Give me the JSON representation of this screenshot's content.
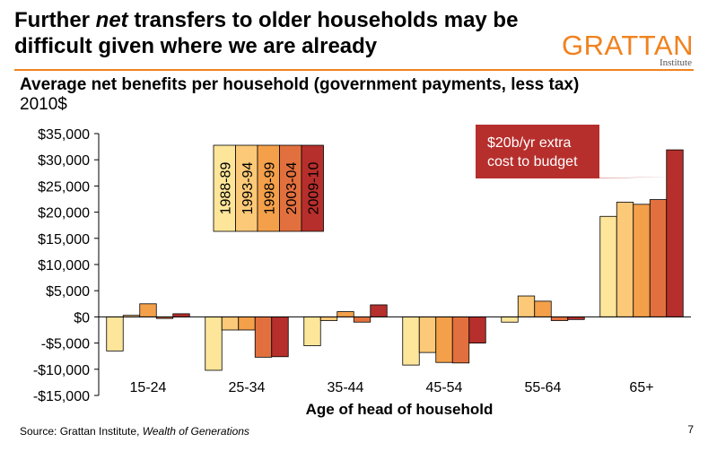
{
  "slide": {
    "title": "Further net transfers to older households may be difficult given where we are already",
    "title_parts": {
      "before": "Further ",
      "emphasis": "net",
      "after": " transfers to older households may be difficult given where we are already"
    },
    "logo": {
      "main": "GRATTAN",
      "sub": "Institute"
    },
    "source_prefix": "Source: Grattan Institute, ",
    "source_title": "Wealth of Generations",
    "page_number": "7",
    "colors": {
      "accent": "#f0821e"
    }
  },
  "chart_data": {
    "type": "bar",
    "title": "Average net benefits per household (government payments, less tax)",
    "units": "2010$",
    "xlabel": "Age of head of household",
    "ylabel": "",
    "categories": [
      "15-24",
      "25-34",
      "35-44",
      "45-54",
      "55-64",
      "65+"
    ],
    "series": [
      {
        "name": "1988-89",
        "color": "#fde59a",
        "values": [
          -6500,
          -10200,
          -5500,
          -9200,
          -1000,
          19200
        ]
      },
      {
        "name": "1993-94",
        "color": "#fbc978",
        "values": [
          300,
          -2500,
          -700,
          -6800,
          4000,
          21900
        ]
      },
      {
        "name": "1998-99",
        "color": "#f4a04a",
        "values": [
          2500,
          -2500,
          1000,
          -8700,
          3000,
          21500
        ]
      },
      {
        "name": "2003-04",
        "color": "#e2703e",
        "values": [
          -300,
          -7700,
          -1000,
          -8800,
          -700,
          22400
        ]
      },
      {
        "name": "2009-10",
        "color": "#b62f2c",
        "values": [
          600,
          -7600,
          2300,
          -5000,
          -500,
          31900
        ]
      }
    ],
    "ylim": [
      -15000,
      35000
    ],
    "yticks": [
      35000,
      30000,
      25000,
      20000,
      15000,
      10000,
      5000,
      0,
      -5000,
      -10000,
      -15000
    ],
    "ytick_labels": [
      "$35,000",
      "$30,000",
      "$25,000",
      "$20,000",
      "$15,000",
      "$10,000",
      "$5,000",
      "$0",
      "-$5,000",
      "-$10,000",
      "-$15,000"
    ],
    "annotation": {
      "text_lines": [
        "$20b/yr extra",
        "cost to budget"
      ],
      "color": "#b62f2c",
      "target_category": "65+",
      "target_series": "2009-10"
    },
    "legend_position": "top-left"
  }
}
